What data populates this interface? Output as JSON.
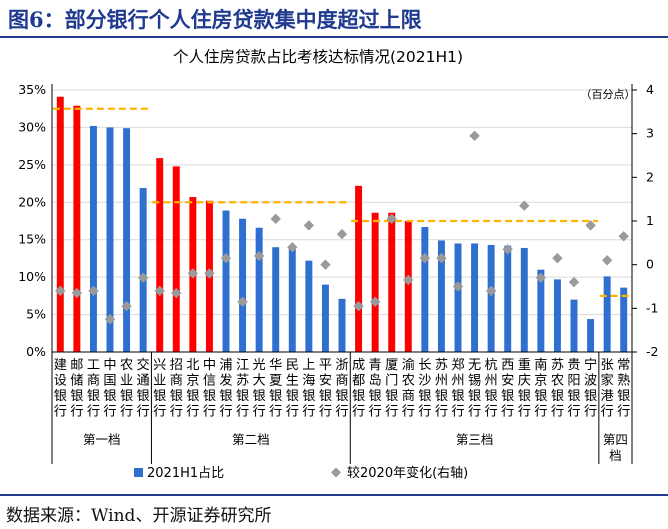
{
  "figure_title": "图6：部分银行个人住房贷款集中度超过上限",
  "source": "数据来源：Wind、开源证券研究所",
  "chart_data": {
    "type": "bar",
    "title": "个人住房贷款占比考核达标情况(2021H1)",
    "categories": [
      "建设银行",
      "邮储银行",
      "工商银行",
      "中国银行",
      "农业银行",
      "交通银行",
      "兴业银行",
      "招商银行",
      "北京银行",
      "中信银行",
      "浦发银行",
      "江苏银行",
      "光大银行",
      "华夏银行",
      "民生银行",
      "上海银行",
      "平安银行",
      "浙商银行",
      "成都银行",
      "青岛银行",
      "厦门银行",
      "渝农商行",
      "长沙银行",
      "苏州银行",
      "郑州银行",
      "无锡银行",
      "杭州银行",
      "西安银行",
      "重庆银行",
      "南京银行",
      "苏农银行",
      "贵阳银行",
      "宁波银行",
      "张家港行",
      "常熟银行"
    ],
    "category_labels": [
      [
        "建",
        "设",
        "银",
        "行"
      ],
      [
        "邮",
        "储",
        "银",
        "行"
      ],
      [
        "工",
        "商",
        "银",
        "行"
      ],
      [
        "中",
        "国",
        "银",
        "行"
      ],
      [
        "农",
        "业",
        "银",
        "行"
      ],
      [
        "交",
        "通",
        "银",
        "行"
      ],
      [
        "兴",
        "业",
        "银",
        "行"
      ],
      [
        "招",
        "商",
        "银",
        "行"
      ],
      [
        "北",
        "京",
        "银",
        "行"
      ],
      [
        "中",
        "信",
        "银",
        "行"
      ],
      [
        "浦",
        "发",
        "银",
        "行"
      ],
      [
        "江",
        "苏",
        "银",
        "行"
      ],
      [
        "光",
        "大",
        "银",
        "行"
      ],
      [
        "华",
        "夏",
        "银",
        "行"
      ],
      [
        "民",
        "生",
        "银",
        "行"
      ],
      [
        "上",
        "海",
        "银",
        "行"
      ],
      [
        "平",
        "安",
        "银",
        "行"
      ],
      [
        "浙",
        "商",
        "银",
        "行"
      ],
      [
        "成",
        "都",
        "银",
        "行"
      ],
      [
        "青",
        "岛",
        "银",
        "行"
      ],
      [
        "厦",
        "门",
        "银",
        "行"
      ],
      [
        "渝",
        "农",
        "商",
        "行"
      ],
      [
        "长",
        "沙",
        "银",
        "行"
      ],
      [
        "苏",
        "州",
        "银",
        "行"
      ],
      [
        "郑",
        "州",
        "银",
        "行"
      ],
      [
        "无",
        "锡",
        "银",
        "行"
      ],
      [
        "杭",
        "州",
        "银",
        "行"
      ],
      [
        "西",
        "安",
        "银",
        "行"
      ],
      [
        "重",
        "庆",
        "银",
        "行"
      ],
      [
        "南",
        "京",
        "银",
        "行"
      ],
      [
        "苏",
        "农",
        "银",
        "行"
      ],
      [
        "贵",
        "阳",
        "银",
        "行"
      ],
      [
        "宁",
        "波",
        "银",
        "行"
      ],
      [
        "张",
        "家",
        "港",
        "行"
      ],
      [
        "常",
        "熟",
        "银",
        "行"
      ]
    ],
    "series": [
      {
        "name": "2021H1占比",
        "type": "bar",
        "unit": "%",
        "values": [
          34.1,
          32.9,
          30.2,
          30.0,
          29.9,
          21.9,
          25.9,
          24.8,
          20.7,
          20.2,
          18.9,
          17.8,
          16.6,
          14.0,
          14.0,
          12.2,
          9.0,
          7.1,
          22.2,
          18.6,
          18.6,
          17.5,
          16.7,
          14.9,
          14.5,
          14.5,
          14.3,
          14.2,
          13.9,
          11.0,
          9.7,
          7.0,
          4.4,
          10.1,
          8.6
        ]
      },
      {
        "name": "较2020年变化(右轴)",
        "type": "scatter",
        "axis": "right",
        "values": [
          -0.6,
          -0.65,
          -0.6,
          -1.25,
          -0.95,
          -0.3,
          -0.6,
          -0.65,
          -0.2,
          -0.2,
          0.15,
          -0.85,
          0.2,
          1.05,
          0.4,
          0.9,
          0.0,
          0.7,
          -0.95,
          -0.85,
          1.05,
          -0.35,
          0.15,
          0.15,
          -0.5,
          2.95,
          -0.6,
          0.35,
          1.35,
          -0.3,
          0.15,
          -0.4,
          0.9,
          0.1,
          0.65
        ]
      }
    ],
    "bar_colors": [
      "#ff0000",
      "#ff0000",
      "#2e6fd0",
      "#2e6fd0",
      "#2e6fd0",
      "#2e6fd0",
      "#ff0000",
      "#ff0000",
      "#ff0000",
      "#ff0000",
      "#2e6fd0",
      "#2e6fd0",
      "#2e6fd0",
      "#2e6fd0",
      "#2e6fd0",
      "#2e6fd0",
      "#2e6fd0",
      "#2e6fd0",
      "#ff0000",
      "#ff0000",
      "#ff0000",
      "#ff0000",
      "#2e6fd0",
      "#2e6fd0",
      "#2e6fd0",
      "#2e6fd0",
      "#2e6fd0",
      "#2e6fd0",
      "#2e6fd0",
      "#2e6fd0",
      "#2e6fd0",
      "#2e6fd0",
      "#2e6fd0",
      "#2e6fd0",
      "#2e6fd0"
    ],
    "limit_lines": [
      {
        "from": 0,
        "to": 5,
        "value": 32.5
      },
      {
        "from": 6,
        "to": 17,
        "value": 20.0
      },
      {
        "from": 18,
        "to": 32,
        "value": 17.5
      },
      {
        "from": 33,
        "to": 34,
        "value": 7.5
      }
    ],
    "groups": [
      {
        "label": "第一档",
        "from": 0,
        "to": 5,
        "label_lines": [
          "第一档"
        ]
      },
      {
        "label": "第二档",
        "from": 6,
        "to": 17,
        "label_lines": [
          "第二档"
        ]
      },
      {
        "label": "第三档",
        "from": 18,
        "to": 32,
        "label_lines": [
          "第三档"
        ]
      },
      {
        "label": "第四档",
        "from": 33,
        "to": 34,
        "label_lines": [
          "第四",
          "档"
        ]
      }
    ],
    "ylim": [
      0,
      35
    ],
    "yticks": [
      "0%",
      "5%",
      "10%",
      "15%",
      "20%",
      "25%",
      "30%",
      "35%"
    ],
    "y2lim": [
      -2,
      4
    ],
    "y2ticks": [
      "-2",
      "-1",
      "0",
      "1",
      "2",
      "3",
      "4"
    ],
    "y2label": "（百分点）",
    "legend": [
      "2021H1占比",
      "较2020年变化(右轴)"
    ],
    "legend_position": "bottom",
    "colors": {
      "primary_bar": "#2e6fd0",
      "over_limit_bar": "#ff0000",
      "marker": "#9a9a9a",
      "limit_line": "#ffb300"
    }
  }
}
